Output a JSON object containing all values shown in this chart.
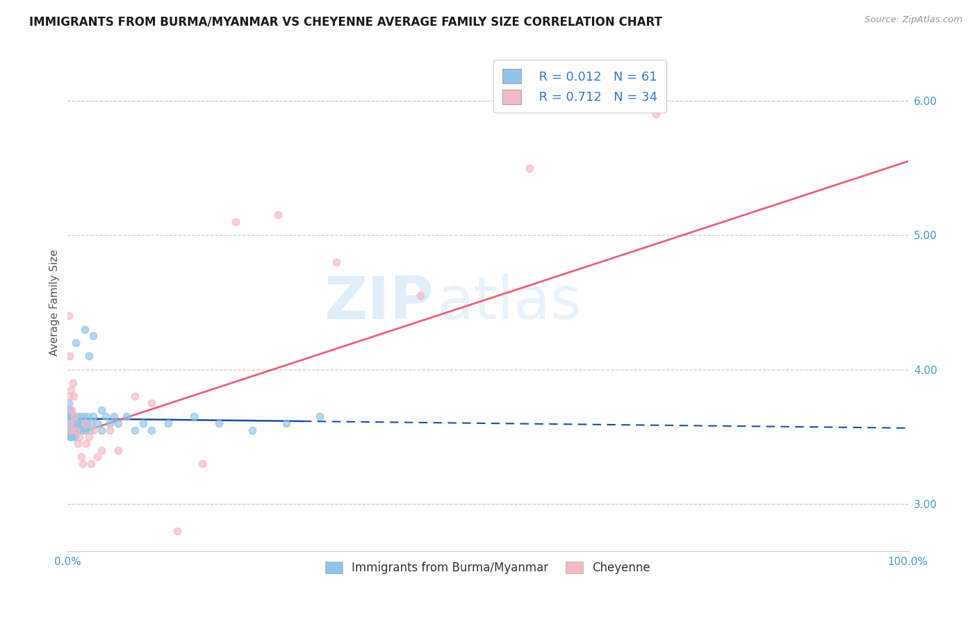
{
  "title": "IMMIGRANTS FROM BURMA/MYANMAR VS CHEYENNE AVERAGE FAMILY SIZE CORRELATION CHART",
  "source_text": "Source: ZipAtlas.com",
  "ylabel": "Average Family Size",
  "xlim": [
    0,
    1.0
  ],
  "ylim": [
    2.65,
    6.35
  ],
  "xtick_labels": [
    "0.0%",
    "100.0%"
  ],
  "ytick_right": [
    3.0,
    4.0,
    5.0,
    6.0
  ],
  "legend_r1": "R = 0.012",
  "legend_n1": "N = 61",
  "legend_r2": "R = 0.712",
  "legend_n2": "N = 34",
  "blue_color": "#90c4e8",
  "pink_color": "#f5b8c4",
  "blue_line_color": "#1a4fa0",
  "pink_line_color": "#e8607a",
  "watermark_zip": "ZIP",
  "watermark_atlas": "atlas",
  "grid_color": "#cccccc",
  "background_color": "#ffffff",
  "title_color": "#1a1a1a",
  "axis_color": "#4499cc",
  "text_color_blue": "#3377cc",
  "label_fontsize": 11,
  "title_fontsize": 12,
  "blue_scatter_x": [
    0.001,
    0.001,
    0.001,
    0.001,
    0.001,
    0.002,
    0.002,
    0.002,
    0.002,
    0.002,
    0.003,
    0.003,
    0.003,
    0.003,
    0.004,
    0.004,
    0.004,
    0.004,
    0.005,
    0.005,
    0.005,
    0.006,
    0.006,
    0.006,
    0.007,
    0.007,
    0.008,
    0.008,
    0.009,
    0.01,
    0.01,
    0.011,
    0.012,
    0.013,
    0.014,
    0.015,
    0.016,
    0.017,
    0.018,
    0.019,
    0.02,
    0.022,
    0.024,
    0.026,
    0.028,
    0.03,
    0.035,
    0.04,
    0.045,
    0.05,
    0.06,
    0.07,
    0.08,
    0.09,
    0.1,
    0.12,
    0.15,
    0.18,
    0.22,
    0.26,
    0.3
  ],
  "blue_scatter_y": [
    3.55,
    3.6,
    3.65,
    3.7,
    3.75,
    3.5,
    3.55,
    3.6,
    3.65,
    3.7,
    3.5,
    3.55,
    3.6,
    3.65,
    3.5,
    3.55,
    3.6,
    3.7,
    3.5,
    3.55,
    3.6,
    3.5,
    3.55,
    3.65,
    3.5,
    3.6,
    3.55,
    3.65,
    3.5,
    3.55,
    3.65,
    3.6,
    3.55,
    3.6,
    3.65,
    3.55,
    3.6,
    3.55,
    3.6,
    3.65,
    3.55,
    3.6,
    3.65,
    3.55,
    3.6,
    3.65,
    3.6,
    3.55,
    3.65,
    3.6,
    3.6,
    3.65,
    3.55,
    3.6,
    3.55,
    3.6,
    3.65,
    3.6,
    3.55,
    3.6,
    3.65
  ],
  "blue_scatter_x_outliers": [
    0.01,
    0.02,
    0.025,
    0.03,
    0.04,
    0.055
  ],
  "blue_scatter_y_outliers": [
    4.2,
    4.3,
    4.1,
    4.25,
    3.7,
    3.65
  ],
  "pink_scatter_x": [
    0.001,
    0.002,
    0.002,
    0.003,
    0.004,
    0.004,
    0.005,
    0.006,
    0.007,
    0.008,
    0.01,
    0.012,
    0.014,
    0.016,
    0.018,
    0.02,
    0.022,
    0.025,
    0.028,
    0.03,
    0.035,
    0.04,
    0.05,
    0.06,
    0.08,
    0.1,
    0.13,
    0.16,
    0.2,
    0.25,
    0.32,
    0.42,
    0.55,
    0.7
  ],
  "pink_scatter_y": [
    4.4,
    3.8,
    4.1,
    3.6,
    3.55,
    3.85,
    3.7,
    3.9,
    3.8,
    3.65,
    3.55,
    3.45,
    3.5,
    3.35,
    3.3,
    3.6,
    3.45,
    3.5,
    3.3,
    3.55,
    3.35,
    3.4,
    3.55,
    3.4,
    3.8,
    3.75,
    2.8,
    3.3,
    5.1,
    5.15,
    4.8,
    4.55,
    5.5,
    5.9
  ],
  "blue_line_solid_end": 0.28,
  "pink_line_y_at_0": 3.5,
  "pink_line_y_at_1": 5.55
}
